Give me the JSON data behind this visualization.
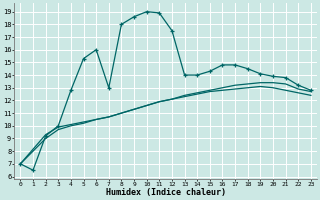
{
  "xlabel": "Humidex (Indice chaleur)",
  "bg_color": "#cce8e4",
  "line_color": "#006666",
  "xlim": [
    -0.5,
    23.5
  ],
  "ylim": [
    5.8,
    19.7
  ],
  "yticks": [
    6,
    7,
    8,
    9,
    10,
    11,
    12,
    13,
    14,
    15,
    16,
    17,
    18,
    19
  ],
  "xticks": [
    0,
    1,
    2,
    3,
    4,
    5,
    6,
    7,
    8,
    9,
    10,
    11,
    12,
    13,
    14,
    15,
    16,
    17,
    18,
    19,
    20,
    21,
    22,
    23
  ],
  "line1_x": [
    0,
    1,
    2,
    3,
    4,
    5,
    6,
    7,
    8,
    9,
    10,
    11,
    12,
    13,
    14,
    15,
    16,
    17,
    18,
    19,
    20,
    21,
    22,
    23
  ],
  "line1_y": [
    7.0,
    6.5,
    9.2,
    10.0,
    12.8,
    15.3,
    16.0,
    13.0,
    18.0,
    18.6,
    19.0,
    18.9,
    17.5,
    14.0,
    14.0,
    14.3,
    14.8,
    14.8,
    14.5,
    14.1,
    13.9,
    13.8,
    13.2,
    12.8
  ],
  "line2_x": [
    0,
    2,
    3,
    4,
    5,
    6,
    7,
    8,
    9,
    10,
    11,
    12,
    13,
    14,
    15,
    16,
    17,
    18,
    19,
    20,
    21,
    22,
    23
  ],
  "line2_y": [
    7.0,
    9.3,
    9.9,
    10.1,
    10.3,
    10.5,
    10.7,
    11.0,
    11.3,
    11.6,
    11.9,
    12.1,
    12.4,
    12.6,
    12.8,
    13.0,
    13.2,
    13.3,
    13.4,
    13.4,
    13.3,
    12.9,
    12.7
  ],
  "line3_x": [
    0,
    2,
    3,
    4,
    5,
    6,
    7,
    8,
    9,
    10,
    11,
    12,
    13,
    14,
    15,
    16,
    17,
    18,
    19,
    20,
    21,
    22,
    23
  ],
  "line3_y": [
    7.0,
    9.0,
    9.7,
    10.0,
    10.2,
    10.5,
    10.7,
    11.0,
    11.3,
    11.6,
    11.9,
    12.1,
    12.3,
    12.5,
    12.7,
    12.8,
    12.9,
    13.0,
    13.1,
    13.0,
    12.8,
    12.6,
    12.4
  ]
}
